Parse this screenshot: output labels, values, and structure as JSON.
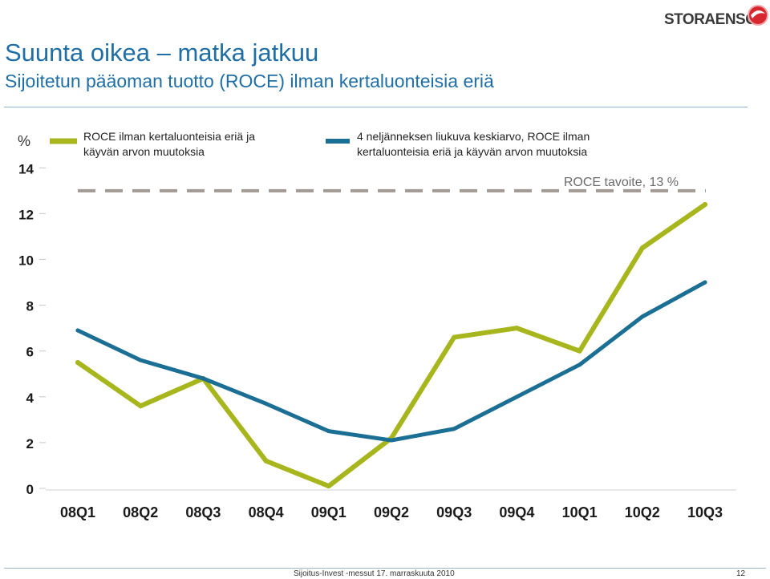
{
  "header": {
    "title": "Suunta oikea – matka jatkuu",
    "subtitle": "Sijoitetun pääoman tuotto (ROCE) ilman kertaluonteisia eriä",
    "logo_text": "STORAENSO"
  },
  "footer": {
    "text": "Sijoitus-Invest -messut   17. marraskuuta 2010",
    "page": "12"
  },
  "colors": {
    "series1": "#a8b61e",
    "series2": "#1b6e94",
    "target": "#a39993",
    "title": "#1f6fa6"
  },
  "chart_data": {
    "type": "line",
    "ylabel": "%",
    "ylim": [
      0,
      14
    ],
    "yticks": [
      0,
      2,
      4,
      6,
      8,
      10,
      12,
      14
    ],
    "categories": [
      "08Q1",
      "08Q2",
      "08Q3",
      "08Q4",
      "09Q1",
      "09Q2",
      "09Q3",
      "09Q4",
      "10Q1",
      "10Q2",
      "10Q3"
    ],
    "series": [
      {
        "name": "ROCE ilman kertaluonteisia eriä ja käyvän arvon muutoksia",
        "values": [
          5.5,
          3.6,
          4.8,
          1.2,
          0.1,
          2.2,
          6.6,
          7.0,
          6.0,
          10.5,
          12.4
        ]
      },
      {
        "name": "4 neljänneksen liukuva keskiarvo, ROCE ilman kertaluonteisia eriä ja käyvän arvon muutoksia",
        "values": [
          6.9,
          5.6,
          4.8,
          3.7,
          2.5,
          2.1,
          2.6,
          4.0,
          5.4,
          7.5,
          9.0
        ]
      }
    ],
    "target": {
      "label": "ROCE tavoite, 13 %",
      "value": 13
    },
    "grid": false,
    "legend_position": "top"
  }
}
